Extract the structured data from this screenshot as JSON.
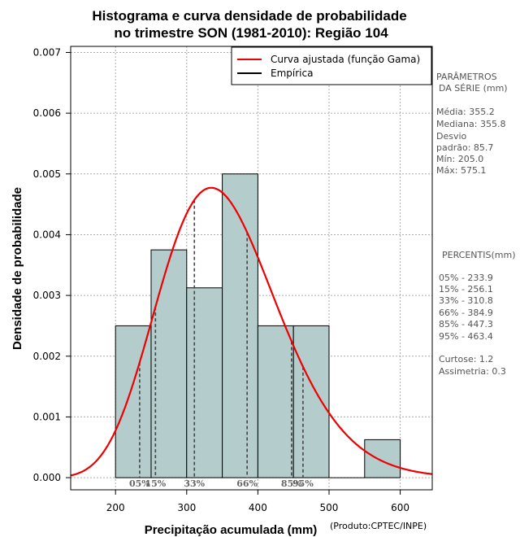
{
  "chart_data": {
    "type": "bar",
    "title_line1": "Histograma e curva densidade de probabilidade",
    "title_line2": "no trimestre SON (1981-2010): Região 104",
    "xlabel": "Precipitação acumulada (mm)",
    "ylabel": "Densidade de probabilidade",
    "credit": "(Produto:CPTEC/INPE)",
    "xlim": [
      137,
      645
    ],
    "ylim": [
      -0.0002,
      0.0071
    ],
    "x_ticks": [
      200,
      300,
      400,
      500,
      600
    ],
    "y_ticks": [
      0.0,
      0.001,
      0.002,
      0.003,
      0.004,
      0.005,
      0.006,
      0.007
    ],
    "y_tick_labels": [
      "0.000",
      "0.001",
      "0.002",
      "0.003",
      "0.004",
      "0.005",
      "0.006",
      "0.007"
    ],
    "grid": true,
    "bins": [
      {
        "start": 200,
        "end": 250,
        "density": 0.0025
      },
      {
        "start": 250,
        "end": 300,
        "density": 0.00375
      },
      {
        "start": 300,
        "end": 350,
        "density": 0.003125
      },
      {
        "start": 350,
        "end": 400,
        "density": 0.005
      },
      {
        "start": 400,
        "end": 450,
        "density": 0.0025
      },
      {
        "start": 450,
        "end": 500,
        "density": 0.0025
      },
      {
        "start": 500,
        "end": 550,
        "density": 0.0
      },
      {
        "start": 550,
        "end": 600,
        "density": 0.000625
      }
    ],
    "fitted_curve": {
      "name": "Curva ajustada (função Gama)",
      "distribution": "gamma",
      "mean": 355.2,
      "sd": 85.7,
      "color": "#ee0000"
    },
    "legend": [
      {
        "label": "Curva ajustada (função Gama)",
        "color": "#ee0000"
      },
      {
        "label": "Empírica",
        "color": "#000000"
      }
    ],
    "percentile_markers": [
      {
        "label": "05%",
        "value": 233.9
      },
      {
        "label": "15%",
        "value": 256.1
      },
      {
        "label": "33%",
        "value": 310.8
      },
      {
        "label": "66%",
        "value": 384.9
      },
      {
        "label": "85%",
        "value": 447.3
      },
      {
        "label": "95%",
        "value": 463.4
      }
    ],
    "bar_color": "#b4cccc"
  },
  "parametros": {
    "heading_line1": "PARÂMETROS",
    "heading_line2": "DA SÉRIE (mm)",
    "media": "Média:  355.2",
    "mediana": "Mediana:  355.8",
    "desvio_line1": "Desvio",
    "desvio_line2": "padrão:  85.7",
    "min": "Mín:  205.0",
    "max": "Máx:  575.1"
  },
  "percentis": {
    "heading": "PERCENTIS(mm)",
    "rows": [
      "05% -  233.9",
      "15% -  256.1",
      "33% -  310.8",
      "66% -  384.9",
      "85% -  447.3",
      "95% -  463.4"
    ],
    "curtose": "Curtose:  1.2",
    "assimetria": "Assimetria:  0.3"
  }
}
